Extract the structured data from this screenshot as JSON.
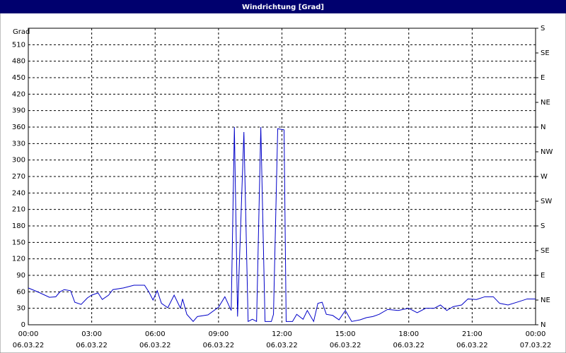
{
  "chart_data": {
    "type": "line",
    "title": "Windrichtung [Grad]",
    "y_label": "Grad",
    "xlim": [
      0,
      24
    ],
    "ylim": [
      0,
      540
    ],
    "y2lim": [
      0,
      540
    ],
    "xticks": [
      {
        "value": 0,
        "label": "00:00"
      },
      {
        "value": 3,
        "label": "03:00"
      },
      {
        "value": 6,
        "label": "06:00"
      },
      {
        "value": 9,
        "label": "09:00"
      },
      {
        "value": 12,
        "label": "12:00"
      },
      {
        "value": 15,
        "label": "15:00"
      },
      {
        "value": 18,
        "label": "18:00"
      },
      {
        "value": 21,
        "label": "21:00"
      },
      {
        "value": 24,
        "label": "00:00"
      }
    ],
    "xtick_dates": [
      "06.03.22",
      "06.03.22",
      "06.03.22",
      "06.03.22",
      "06.03.22",
      "06.03.22",
      "06.03.22",
      "06.03.22",
      "07.03.22"
    ],
    "yticks": [
      0,
      30,
      60,
      90,
      120,
      150,
      180,
      210,
      240,
      270,
      300,
      330,
      360,
      390,
      420,
      450,
      480,
      510
    ],
    "y2ticks": [
      {
        "value": 0,
        "label": "N"
      },
      {
        "value": 45,
        "label": "NE"
      },
      {
        "value": 90,
        "label": "E"
      },
      {
        "value": 135,
        "label": "SE"
      },
      {
        "value": 180,
        "label": "S"
      },
      {
        "value": 225,
        "label": "SW"
      },
      {
        "value": 270,
        "label": "W"
      },
      {
        "value": 315,
        "label": "NW"
      },
      {
        "value": 360,
        "label": "N"
      },
      {
        "value": 405,
        "label": "NE"
      },
      {
        "value": 450,
        "label": "E"
      },
      {
        "value": 495,
        "label": "SE"
      },
      {
        "value": 540,
        "label": "S"
      }
    ],
    "grid": true,
    "x": [
      0,
      0.5,
      1,
      1.3,
      1.5,
      1.7,
      2,
      2.2,
      2.5,
      2.8,
      3,
      3.3,
      3.5,
      3.8,
      4,
      4.5,
      5,
      5.5,
      5.7,
      5.9,
      6.1,
      6.3,
      6.6,
      6.9,
      7.2,
      7.3,
      7.5,
      7.8,
      8,
      8.5,
      9,
      9.3,
      9.6,
      9.75,
      9.9,
      10.2,
      10.4,
      10.6,
      10.8,
      11,
      11.2,
      11.5,
      11.6,
      11.8,
      12.1,
      12.2,
      12.5,
      12.7,
      13,
      13.2,
      13.5,
      13.7,
      13.9,
      14.1,
      14.4,
      14.7,
      15,
      15.3,
      15.7,
      16,
      16.3,
      16.6,
      17,
      17.5,
      18,
      18.4,
      18.8,
      19.2,
      19.5,
      19.8,
      20.1,
      20.5,
      20.8,
      21.2,
      21.6,
      22,
      22.3,
      22.7,
      23.2,
      23.6,
      24
    ],
    "series": [
      {
        "name": "Windrichtung",
        "color": "#0000c8",
        "values": [
          67,
          59,
          50,
          51,
          60,
          64,
          62,
          41,
          37,
          49,
          54,
          58,
          46,
          54,
          64,
          67,
          72,
          72,
          60,
          45,
          62,
          39,
          31,
          54,
          30,
          47,
          19,
          6,
          15,
          18,
          32,
          51,
          26,
          360,
          15,
          351,
          6,
          10,
          6,
          360,
          6,
          6,
          19,
          357,
          355,
          6,
          6,
          19,
          10,
          26,
          6,
          39,
          41,
          19,
          17,
          9,
          26,
          6,
          9,
          13,
          15,
          19,
          28,
          26,
          30,
          22,
          30,
          30,
          36,
          26,
          33,
          36,
          47,
          46,
          51,
          51,
          39,
          36,
          42,
          47,
          47
        ]
      }
    ]
  }
}
